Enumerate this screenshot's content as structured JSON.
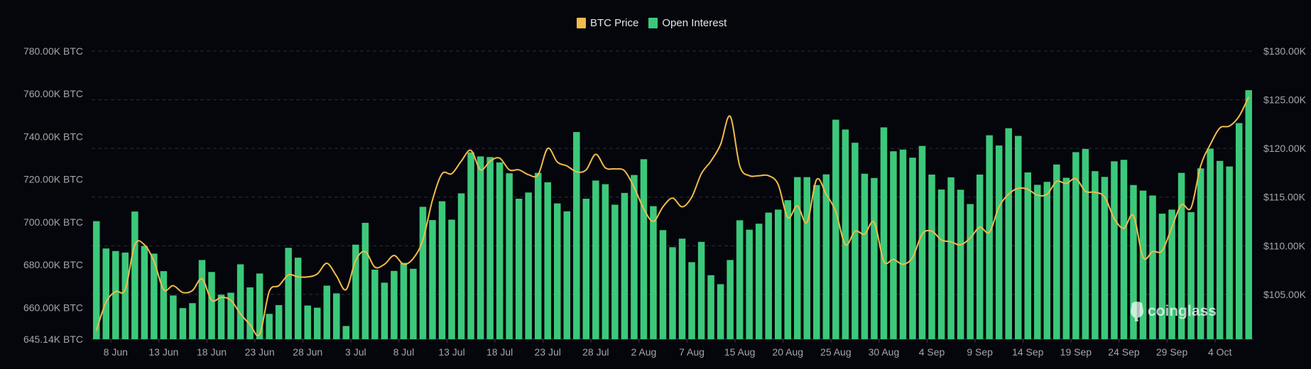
{
  "chart_data": {
    "type": "bar+line",
    "legend": {
      "position": "top-center",
      "items": [
        {
          "name": "BTC Price",
          "color": "#f2bb4b"
        },
        {
          "name": "Open Interest",
          "color": "#3cc87a"
        }
      ]
    },
    "left_axis": {
      "ticks": [
        "780.00K BTC",
        "760.00K BTC",
        "740.00K BTC",
        "720.00K BTC",
        "700.00K BTC",
        "680.00K BTC",
        "660.00K BTC",
        "645.14K BTC"
      ],
      "range": [
        645.14,
        780
      ],
      "unit": "K BTC"
    },
    "right_axis": {
      "ticks": [
        "$130.00K",
        "$125.00K",
        "$120.00K",
        "$115.00K",
        "$110.00K",
        "$105.00K"
      ],
      "range": [
        100.4,
        130
      ],
      "unit": "$K"
    },
    "grid": true,
    "x_tick_labels": [
      "8 Jun",
      "13 Jun",
      "18 Jun",
      "23 Jun",
      "28 Jun",
      "3 Jul",
      "8 Jul",
      "13 Jul",
      "18 Jul",
      "23 Jul",
      "28 Jul",
      "2 Aug",
      "7 Aug",
      "15 Aug",
      "20 Aug",
      "25 Aug",
      "30 Aug",
      "4 Sep",
      "9 Sep",
      "14 Sep",
      "19 Sep",
      "24 Sep",
      "29 Sep",
      "4 Oct"
    ],
    "categories": [
      "6 Jun",
      "7 Jun",
      "8 Jun",
      "9 Jun",
      "10 Jun",
      "11 Jun",
      "12 Jun",
      "13 Jun",
      "14 Jun",
      "15 Jun",
      "16 Jun",
      "17 Jun",
      "18 Jun",
      "19 Jun",
      "20 Jun",
      "21 Jun",
      "22 Jun",
      "23 Jun",
      "24 Jun",
      "25 Jun",
      "26 Jun",
      "27 Jun",
      "28 Jun",
      "29 Jun",
      "30 Jun",
      "1 Jul",
      "2 Jul",
      "3 Jul",
      "4 Jul",
      "5 Jul",
      "6 Jul",
      "7 Jul",
      "8 Jul",
      "9 Jul",
      "10 Jul",
      "11 Jul",
      "12 Jul",
      "13 Jul",
      "14 Jul",
      "15 Jul",
      "16 Jul",
      "17 Jul",
      "18 Jul",
      "19 Jul",
      "20 Jul",
      "21 Jul",
      "22 Jul",
      "23 Jul",
      "24 Jul",
      "25 Jul",
      "26 Jul",
      "27 Jul",
      "28 Jul",
      "29 Jul",
      "30 Jul",
      "31 Jul",
      "1 Aug",
      "2 Aug",
      "3 Aug",
      "4 Aug",
      "5 Aug",
      "6 Aug",
      "7 Aug",
      "11 Aug",
      "12 Aug",
      "13 Aug",
      "14 Aug",
      "15 Aug",
      "16 Aug",
      "17 Aug",
      "18 Aug",
      "19 Aug",
      "20 Aug",
      "21 Aug",
      "22 Aug",
      "23 Aug",
      "24 Aug",
      "25 Aug",
      "26 Aug",
      "27 Aug",
      "28 Aug",
      "29 Aug",
      "30 Aug",
      "31 Aug",
      "1 Sep",
      "2 Sep",
      "3 Sep",
      "4 Sep",
      "5 Sep",
      "6 Sep",
      "7 Sep",
      "8 Sep",
      "9 Sep",
      "10 Sep",
      "11 Sep",
      "12 Sep",
      "13 Sep",
      "14 Sep",
      "15 Sep",
      "16 Sep",
      "17 Sep",
      "18 Sep",
      "19 Sep",
      "20 Sep",
      "21 Sep",
      "22 Sep",
      "23 Sep",
      "24 Sep",
      "25 Sep",
      "26 Sep",
      "27 Sep",
      "28 Sep",
      "29 Sep",
      "30 Sep",
      "1 Oct",
      "2 Oct",
      "3 Oct",
      "4 Oct",
      "5 Oct",
      "6 Oct",
      "7 Oct"
    ],
    "series": [
      {
        "name": "Open Interest",
        "type": "bar",
        "axis": "left",
        "color": "#3cc87a",
        "values": [
          700.4,
          687.6,
          686.4,
          685.7,
          704.9,
          688.8,
          685.2,
          677,
          665.6,
          659.7,
          662,
          682.2,
          676.6,
          666,
          666.9,
          680.2,
          669.4,
          675.9,
          657,
          661.1,
          687.9,
          683.3,
          660.9,
          659.9,
          670.2,
          666.6,
          651.3,
          689.4,
          699.6,
          677.7,
          671.6,
          677.1,
          680.9,
          678.1,
          707.1,
          700.9,
          709.7,
          701.1,
          713.4,
          732.6,
          730.7,
          730.4,
          727.9,
          722.8,
          710.9,
          713.8,
          723,
          718.6,
          708.7,
          705,
          742.1,
          710.9,
          719.4,
          717.7,
          708.1,
          713.6,
          722,
          729.4,
          707.4,
          696.2,
          688.2,
          692.2,
          681.2,
          690.7,
          675.1,
          670.9,
          682.2,
          700.8,
          696.4,
          699.2,
          704.4,
          705.8,
          710.2,
          721,
          721,
          717.3,
          722.3,
          747.9,
          743.3,
          737.1,
          722.6,
          720.6,
          744.3,
          733.1,
          733.9,
          730.1,
          735.6,
          722.2,
          715.2,
          720.9,
          715.1,
          708.4,
          722.2,
          740.6,
          735.8,
          743.9,
          740.3,
          723.2,
          717.4,
          718.8,
          726.9,
          720.7,
          732.7,
          734.2,
          723.8,
          721.1,
          728.4,
          729.1,
          717.3,
          714.7,
          712.4,
          703.9,
          705.8,
          723,
          704.6,
          725.1,
          734.3,
          728.6,
          726,
          746.3,
          761.7
        ]
      },
      {
        "name": "BTC Price",
        "type": "line",
        "axis": "right",
        "color": "#f2bb4b",
        "values": [
          101.3,
          104.2,
          105.3,
          105.5,
          110.1,
          110.1,
          108.4,
          105.5,
          105.9,
          105.2,
          105.4,
          106.6,
          104.4,
          104.7,
          104.4,
          103,
          101.9,
          100.9,
          105.3,
          105.9,
          107,
          106.8,
          106.8,
          107.1,
          108.2,
          106.9,
          105.5,
          108.5,
          109.4,
          107.8,
          108.1,
          109,
          108.1,
          108.7,
          110.6,
          114.7,
          117.4,
          117.4,
          118.7,
          119.8,
          117.8,
          118.7,
          119,
          117.8,
          117.8,
          117.3,
          117.3,
          120,
          118.6,
          118.2,
          117.6,
          117.8,
          119.4,
          118,
          117.9,
          117.7,
          116,
          113.8,
          112.5,
          114,
          114.9,
          114,
          115,
          117.4,
          118.7,
          120.4,
          123.3,
          118.2,
          117.2,
          117.2,
          117.2,
          116.3,
          112.9,
          114.1,
          112.4,
          116.8,
          115.3,
          113.5,
          110.1,
          111.5,
          111.2,
          112.4,
          108.4,
          108.6,
          108.1,
          108.8,
          111.2,
          111.5,
          110.6,
          110.4,
          110.1,
          110.8,
          111.9,
          111.4,
          114,
          115.3,
          115.9,
          115.8,
          115.2,
          115.3,
          116.6,
          116.4,
          116.9,
          115.6,
          115.5,
          115,
          112.8,
          111.8,
          113.1,
          108.8,
          109.4,
          109.5,
          111.9,
          114.2,
          113.9,
          118.2,
          120.4,
          122.1,
          122.3,
          123.3,
          125.3
        ]
      }
    ]
  },
  "watermark": {
    "text": "coinglass"
  },
  "colors": {
    "background": "#04060b",
    "grid": "#2c2f36",
    "axis_text": "#a3a6ad"
  }
}
